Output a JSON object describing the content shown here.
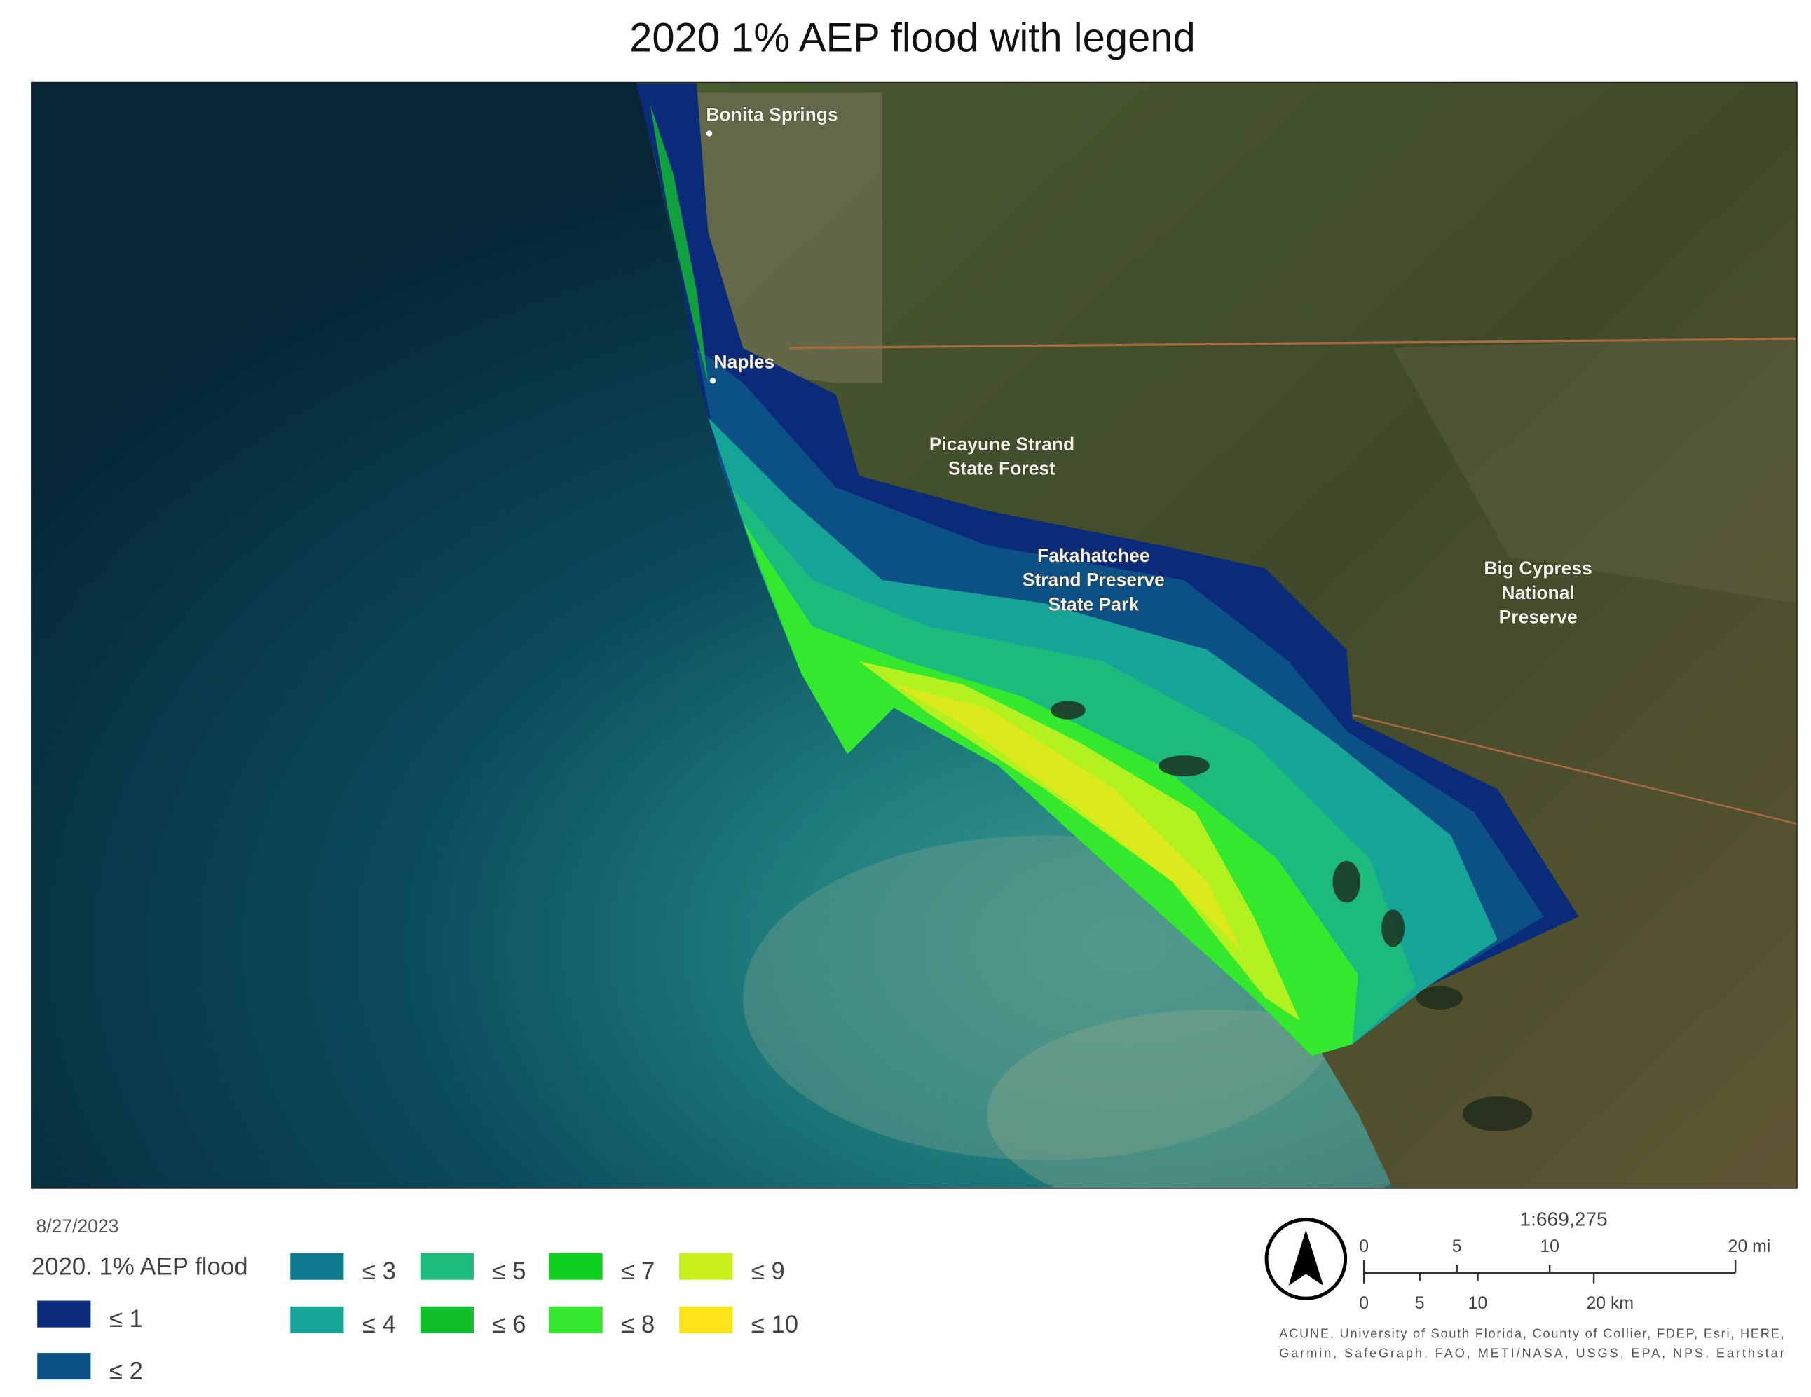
{
  "title": "2020 1% AEP flood with legend",
  "map_labels": [
    {
      "lines": [
        "Bonita Springs"
      ]
    },
    {
      "lines": [
        "Naples"
      ]
    },
    {
      "lines": [
        "Picayune Strand",
        "State Forest"
      ]
    },
    {
      "lines": [
        "Fakahatchee",
        "Strand Preserve",
        "State Park"
      ]
    },
    {
      "lines": [
        "Big Cypress",
        "National",
        "Preserve"
      ]
    }
  ],
  "date": "8/27/2023",
  "legend": {
    "title": "2020. 1% AEP flood",
    "items": [
      {
        "label": "≤ 1",
        "color": "#0a2a7a"
      },
      {
        "label": "≤ 2",
        "color": "#0c5185"
      },
      {
        "label": "≤ 3",
        "color": "#0f7b90"
      },
      {
        "label": "≤ 4",
        "color": "#16a497"
      },
      {
        "label": "≤ 5",
        "color": "#1cba7c"
      },
      {
        "label": "≤ 6",
        "color": "#10bf2c"
      },
      {
        "label": "≤ 7",
        "color": "#0fd11f"
      },
      {
        "label": "≤ 8",
        "color": "#33e82d"
      },
      {
        "label": "≤ 9",
        "color": "#c9f21d"
      },
      {
        "label": "≤ 10",
        "color": "#ffe41a"
      }
    ]
  },
  "scale": {
    "ratio": "1:669,275",
    "miles": [
      "0",
      "5",
      "10",
      "20 mi"
    ],
    "km": [
      "0",
      "5",
      "10",
      "20 km"
    ]
  },
  "attribution": [
    "ACUNE, University of South Florida, County of Collier, FDEP, Esri, HERE,",
    "Garmin, SafeGraph, FAO, METI/NASA, USGS, EPA, NPS, Earthstar"
  ]
}
